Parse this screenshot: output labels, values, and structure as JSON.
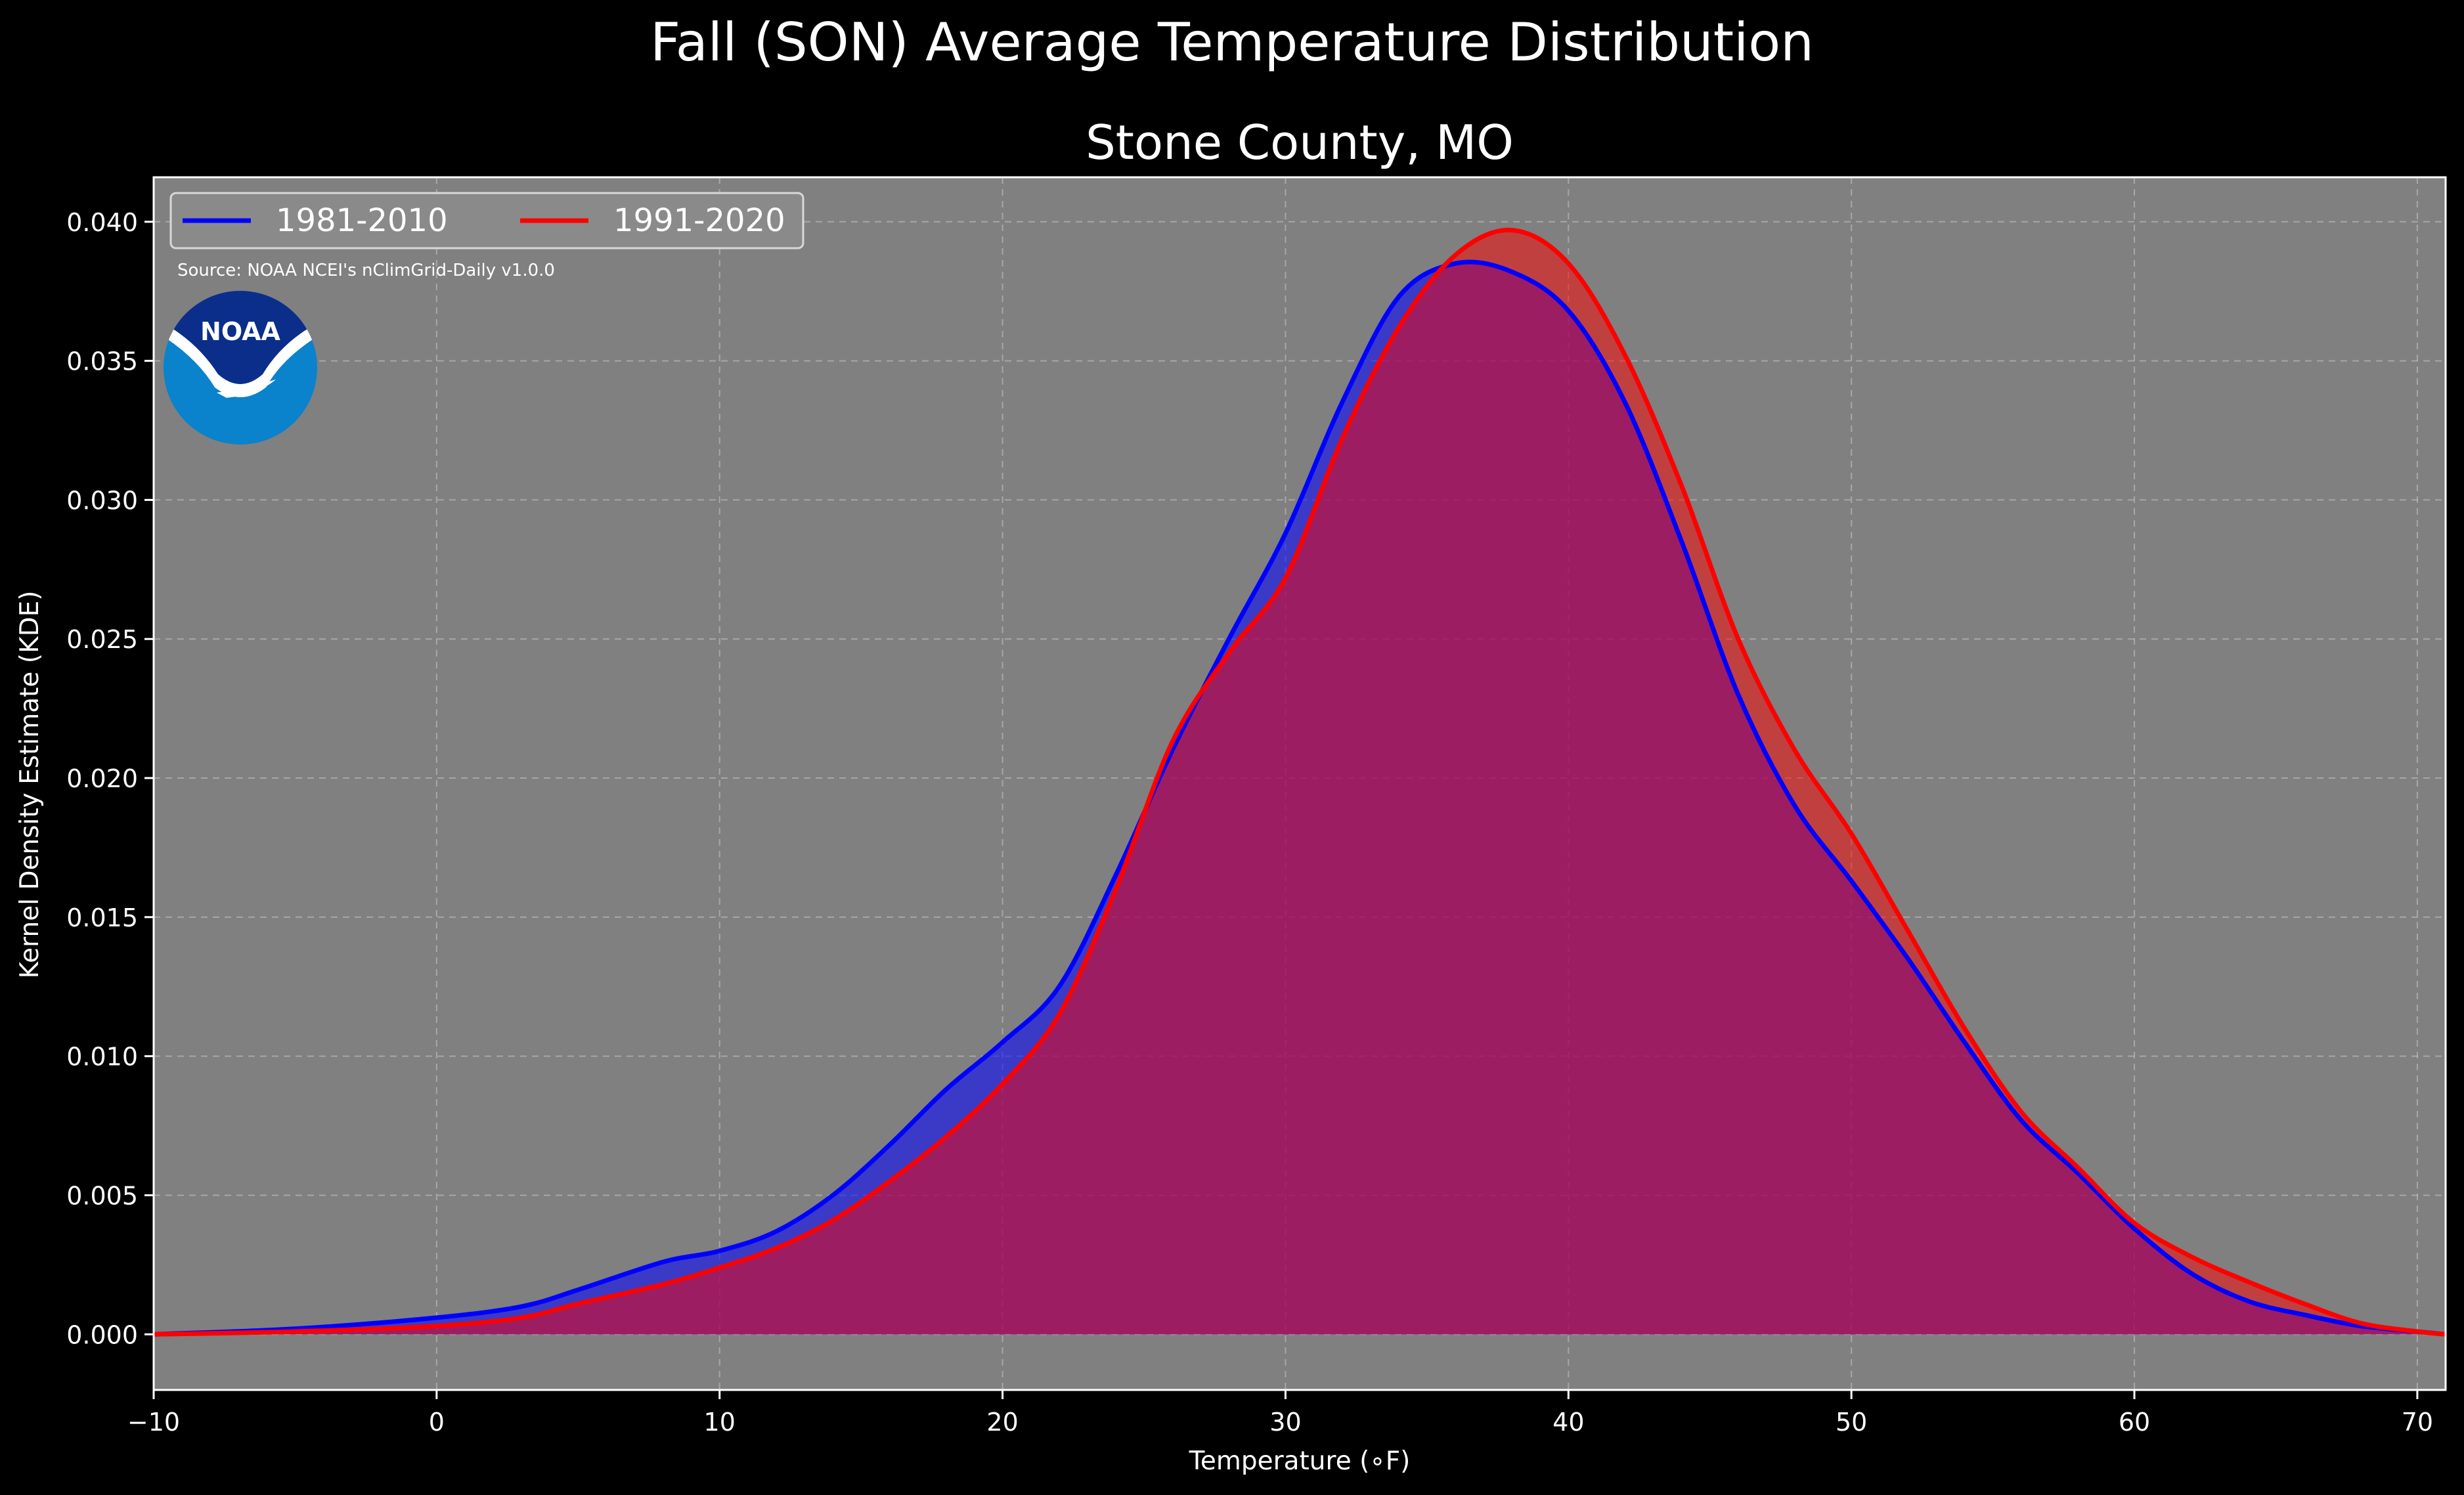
{
  "chart_data": {
    "type": "area",
    "title": "Fall (SON) Average Temperature Distribution",
    "subtitle": "Stone County, MO",
    "xlabel": "Temperature (∘F)",
    "ylabel": "Kernel Density Estimate (KDE)",
    "xlim": [
      -10,
      71
    ],
    "ylim": [
      -0.002,
      0.0416
    ],
    "xticks": [
      -10,
      0,
      10,
      20,
      30,
      40,
      50,
      60,
      70
    ],
    "xtick_labels": [
      "−10",
      "0",
      "10",
      "20",
      "30",
      "40",
      "50",
      "60",
      "70"
    ],
    "yticks": [
      0.0,
      0.005,
      0.01,
      0.015,
      0.02,
      0.025,
      0.03,
      0.035,
      0.04
    ],
    "ytick_labels": [
      "0.000",
      "0.005",
      "0.010",
      "0.015",
      "0.020",
      "0.025",
      "0.030",
      "0.035",
      "0.040"
    ],
    "grid": true,
    "legend_position": "top-left",
    "background_color": "#808080",
    "source": "Source: NOAA NCEI's nClimGrid-Daily v1.0.0",
    "logo_text": "NOAA",
    "series": [
      {
        "name": "1981-2010",
        "color": "#0000ff",
        "x": [
          -10,
          -5,
          0,
          3,
          5,
          8,
          10,
          12,
          14,
          16,
          18,
          20,
          22,
          24,
          26,
          28,
          30,
          32,
          34,
          36,
          38,
          40,
          42,
          44,
          46,
          48,
          50,
          52,
          54,
          56,
          58,
          60,
          62,
          64,
          66,
          68,
          70,
          71
        ],
        "y": [
          0.0,
          0.0002,
          0.0006,
          0.001,
          0.0016,
          0.0026,
          0.003,
          0.0037,
          0.005,
          0.0068,
          0.0088,
          0.0105,
          0.0125,
          0.0165,
          0.021,
          0.025,
          0.0288,
          0.0335,
          0.0373,
          0.0385,
          0.0382,
          0.0368,
          0.0335,
          0.0285,
          0.023,
          0.019,
          0.0163,
          0.0135,
          0.0105,
          0.0077,
          0.0058,
          0.0038,
          0.0022,
          0.0012,
          0.0007,
          0.0003,
          0.0001,
          0.0
        ]
      },
      {
        "name": "1991-2020",
        "color": "#ff0000",
        "x": [
          -10,
          -5,
          0,
          3,
          5,
          8,
          10,
          12,
          14,
          16,
          18,
          20,
          22,
          24,
          26,
          28,
          30,
          32,
          34,
          36,
          38,
          40,
          42,
          44,
          46,
          48,
          50,
          52,
          54,
          56,
          58,
          60,
          62,
          64,
          66,
          68,
          70,
          71
        ],
        "y": [
          0.0,
          0.0001,
          0.0003,
          0.0006,
          0.0011,
          0.0018,
          0.0024,
          0.0031,
          0.0041,
          0.0055,
          0.0071,
          0.009,
          0.0115,
          0.016,
          0.0213,
          0.0245,
          0.0272,
          0.0322,
          0.0362,
          0.0388,
          0.0397,
          0.0385,
          0.0352,
          0.0305,
          0.025,
          0.021,
          0.018,
          0.0145,
          0.011,
          0.008,
          0.006,
          0.004,
          0.0028,
          0.0019,
          0.0011,
          0.0004,
          0.0001,
          0.0
        ]
      }
    ]
  }
}
